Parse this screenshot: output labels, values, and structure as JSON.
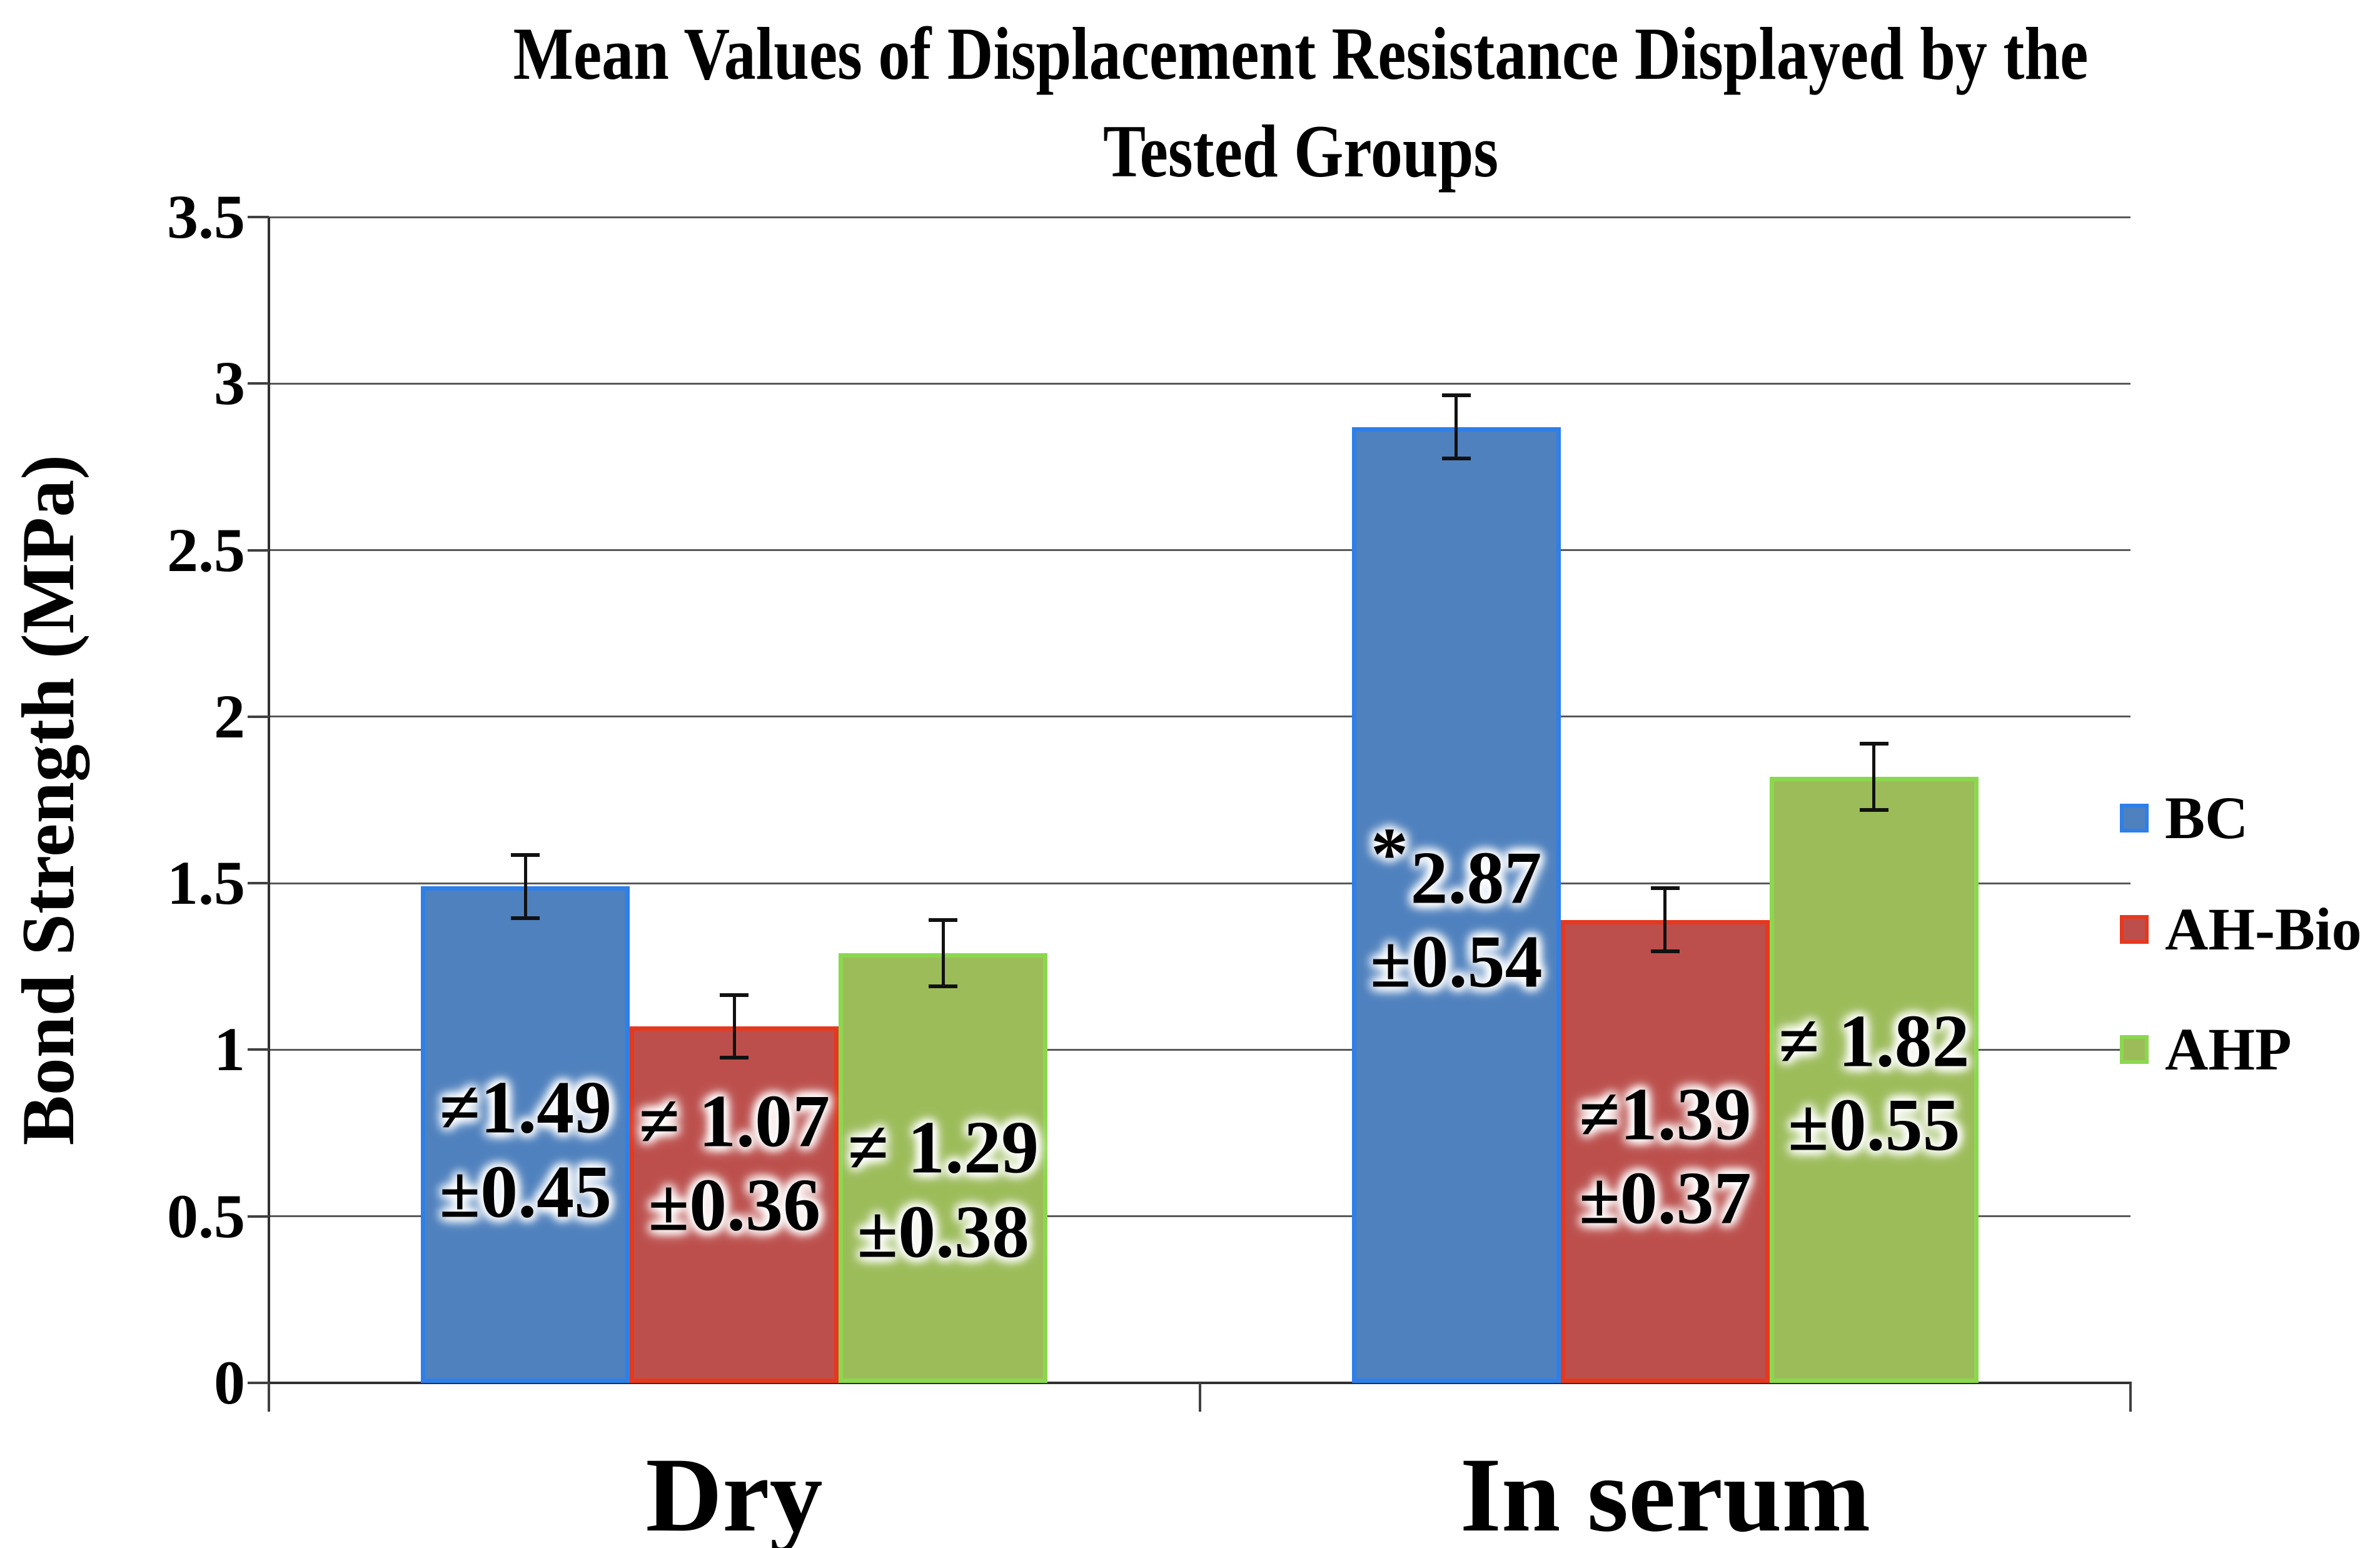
{
  "chart_data": {
    "type": "bar",
    "title": "Mean Values of Displacement Resistance Displayed by the Tested Groups",
    "title_lines": [
      "Mean Values of Displacement Resistance Displayed by the",
      "Tested Groups"
    ],
    "ylabel": "Bond Strength (MPa)",
    "ylim": [
      0,
      3.5
    ],
    "ytick_step": 0.5,
    "ytick_labels": [
      "0",
      "0.5",
      "1",
      "1.5",
      "2",
      "2.5",
      "3",
      "3.5"
    ],
    "grid": true,
    "legend_position": "right",
    "categories": [
      "Dry",
      "In serum"
    ],
    "series": [
      {
        "name": "BC",
        "fill": "#4E81BE",
        "border": "#2E7FE8",
        "values": [
          1.49,
          2.87
        ],
        "sd": [
          0.45,
          0.54
        ],
        "error_bar_half": [
          0.1,
          0.1
        ],
        "labels": [
          {
            "star": "",
            "line1": "≠1.49",
            "line2": "±0.45",
            "center_mpa": 0.7
          },
          {
            "star": "*",
            "line1": "2.87",
            "line2": "±0.54",
            "center_mpa": 1.39
          }
        ]
      },
      {
        "name": "AH-Bio",
        "fill": "#BC4F4C",
        "border": "#E5391F",
        "values": [
          1.07,
          1.39
        ],
        "sd": [
          0.36,
          0.37
        ],
        "error_bar_half": [
          0.1,
          0.1
        ],
        "labels": [
          {
            "star": "",
            "line1": "≠ 1.07",
            "line2": "±0.36",
            "center_mpa": 0.66
          },
          {
            "star": "",
            "line1": "≠1.39",
            "line2": "±0.37",
            "center_mpa": 0.68
          }
        ]
      },
      {
        "name": "AHP",
        "fill": "#9CBC59",
        "border": "#8BD84F",
        "values": [
          1.29,
          1.82
        ],
        "sd": [
          0.38,
          0.55
        ],
        "error_bar_half": [
          0.105,
          0.105
        ],
        "labels": [
          {
            "star": "",
            "line1": "≠ 1.29",
            "line2": "±0.38",
            "center_mpa": 0.58
          },
          {
            "star": "",
            "line1": "≠ 1.82",
            "line2": "±0.55",
            "center_mpa": 0.9
          }
        ]
      }
    ],
    "colors": {
      "gridline": "#595959",
      "axis": "#303030",
      "label_text": "#000000",
      "label_glow": "#ffffff"
    }
  }
}
